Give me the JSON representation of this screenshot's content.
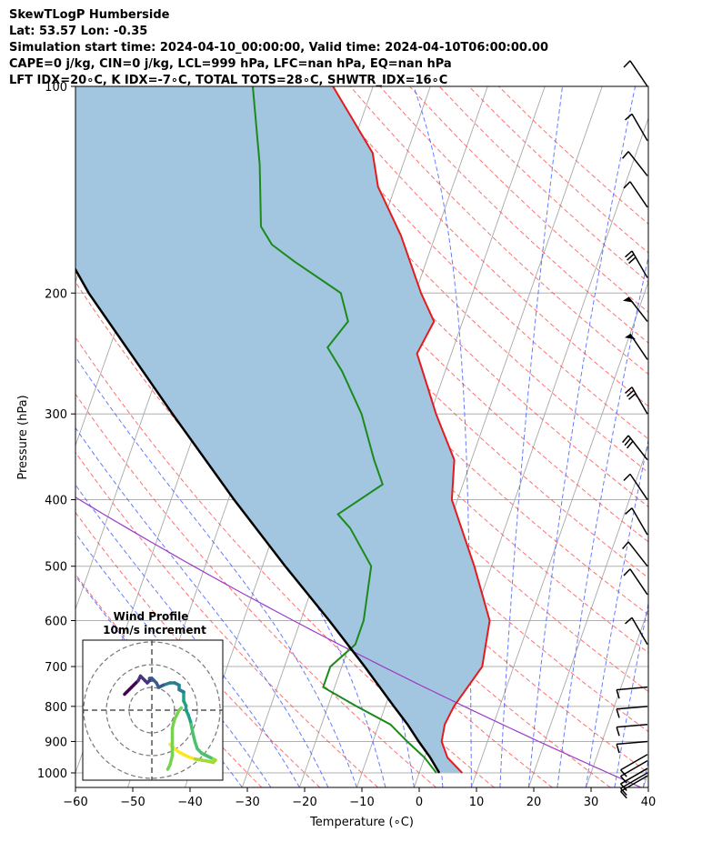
{
  "header": {
    "line1": "SkewTLogP Humberside",
    "line2": "Lat: 53.57   Lon: -0.35",
    "line3": "Simulation start time: 2024-04-10_00:00:00, Valid time: 2024-04-10T06:00:00.00",
    "line4": "CAPE=0 j/kg, CIN=0 j/kg, LCL=999 hPa, LFC=nan hPa, EQ=nan hPa",
    "line5": "LFT IDX=20∘C, K IDX=-7∘C, TOTAL TOTS=28∘C, SHWTR_IDX=16∘C"
  },
  "chart_data": {
    "type": "skew-t",
    "xlabel": "Temperature (∘C)",
    "ylabel": "Pressure (hPa)",
    "xlim": [
      -60,
      40
    ],
    "ylim": [
      1050,
      100
    ],
    "y_scale": "log",
    "x_ticks": [
      "−60",
      "−50",
      "−40",
      "−30",
      "−20",
      "−10",
      "0",
      "10",
      "20",
      "30",
      "40"
    ],
    "y_ticks": [
      "100",
      "200",
      "300",
      "400",
      "500",
      "600",
      "700",
      "800",
      "900",
      "1000"
    ],
    "grid": true,
    "series": [
      {
        "name": "temperature",
        "color": "#e41a1c",
        "points": [
          [
            1000,
            7.5
          ],
          [
            950,
            4
          ],
          [
            900,
            2
          ],
          [
            850,
            1.5
          ],
          [
            800,
            2
          ],
          [
            700,
            4.5
          ],
          [
            600,
            3
          ],
          [
            500,
            -3
          ],
          [
            400,
            -11
          ],
          [
            350,
            -13
          ],
          [
            300,
            -19
          ],
          [
            275,
            -22
          ],
          [
            245,
            -26
          ],
          [
            220,
            -25
          ],
          [
            200,
            -29
          ],
          [
            165,
            -36
          ],
          [
            140,
            -43
          ],
          [
            125,
            -46
          ],
          [
            100,
            -57
          ]
        ]
      },
      {
        "name": "dewpoint",
        "color": "#1b8a1b",
        "points": [
          [
            1000,
            3
          ],
          [
            950,
            0
          ],
          [
            900,
            -4
          ],
          [
            850,
            -8
          ],
          [
            800,
            -15
          ],
          [
            750,
            -22
          ],
          [
            700,
            -22
          ],
          [
            650,
            -19
          ],
          [
            600,
            -19
          ],
          [
            500,
            -21
          ],
          [
            440,
            -27
          ],
          [
            420,
            -30
          ],
          [
            380,
            -24
          ],
          [
            350,
            -27
          ],
          [
            300,
            -32
          ],
          [
            260,
            -38
          ],
          [
            240,
            -42
          ],
          [
            220,
            -40
          ],
          [
            200,
            -43
          ],
          [
            180,
            -53
          ],
          [
            170,
            -58
          ],
          [
            160,
            -61
          ],
          [
            130,
            -65
          ],
          [
            100,
            -71
          ]
        ]
      },
      {
        "name": "parcel",
        "color": "#000000",
        "points": [
          [
            1000,
            3.5
          ],
          [
            950,
            1
          ],
          [
            900,
            -2
          ],
          [
            850,
            -5
          ],
          [
            800,
            -8.5
          ],
          [
            700,
            -16
          ],
          [
            600,
            -25
          ],
          [
            500,
            -36
          ],
          [
            400,
            -49
          ],
          [
            300,
            -65
          ],
          [
            200,
            -87
          ],
          [
            100,
            -120
          ]
        ]
      }
    ],
    "shading": "cape-cin region between parcel and temperature",
    "wind_barbs_pressure_hPa": [
      1010,
      1000,
      985,
      960,
      940,
      900,
      850,
      800,
      750,
      650,
      550,
      500,
      450,
      400,
      350,
      300,
      250,
      220,
      190,
      150,
      135,
      120,
      100
    ],
    "hodograph": {
      "title": "Wind Profile",
      "subtitle": "10m/s increment",
      "rings": 3,
      "colormap": "viridis",
      "points": [
        [
          8,
          -15
        ],
        [
          10,
          -17
        ],
        [
          12,
          -18.5
        ],
        [
          14,
          -19.5
        ],
        [
          16,
          -20.5
        ],
        [
          19,
          -21.5
        ],
        [
          22,
          -22
        ],
        [
          25,
          -22.5
        ],
        [
          27,
          -23
        ],
        [
          28,
          -22
        ],
        [
          26,
          -21
        ],
        [
          24,
          -20
        ],
        [
          22,
          -19
        ],
        [
          20,
          -17
        ],
        [
          19,
          -14
        ],
        [
          18,
          -10
        ],
        [
          17,
          -5
        ],
        [
          16,
          -2
        ],
        [
          15,
          0
        ],
        [
          15,
          2
        ],
        [
          14,
          4
        ],
        [
          14,
          8
        ],
        [
          12,
          9
        ],
        [
          12,
          11
        ],
        [
          10,
          12
        ],
        [
          8,
          12
        ],
        [
          5,
          11
        ],
        [
          3,
          10
        ],
        [
          2,
          12
        ],
        [
          1,
          13
        ],
        [
          0,
          14
        ],
        [
          -1,
          14
        ],
        [
          -1,
          13
        ],
        [
          -2,
          12
        ],
        [
          -3,
          13
        ],
        [
          -5,
          15
        ],
        [
          -6,
          13
        ],
        [
          -7,
          12
        ],
        [
          -8,
          11
        ],
        [
          -9,
          10
        ],
        [
          -10,
          9
        ],
        [
          -11,
          8
        ],
        [
          -12,
          7
        ]
      ],
      "surface_points": [
        [
          7,
          -26
        ],
        [
          8,
          -24
        ],
        [
          9,
          -20
        ],
        [
          9,
          -16
        ],
        [
          9,
          -12
        ],
        [
          9,
          -8
        ],
        [
          10,
          -4
        ],
        [
          11,
          -2
        ],
        [
          12,
          0
        ],
        [
          13,
          1
        ]
      ]
    }
  }
}
